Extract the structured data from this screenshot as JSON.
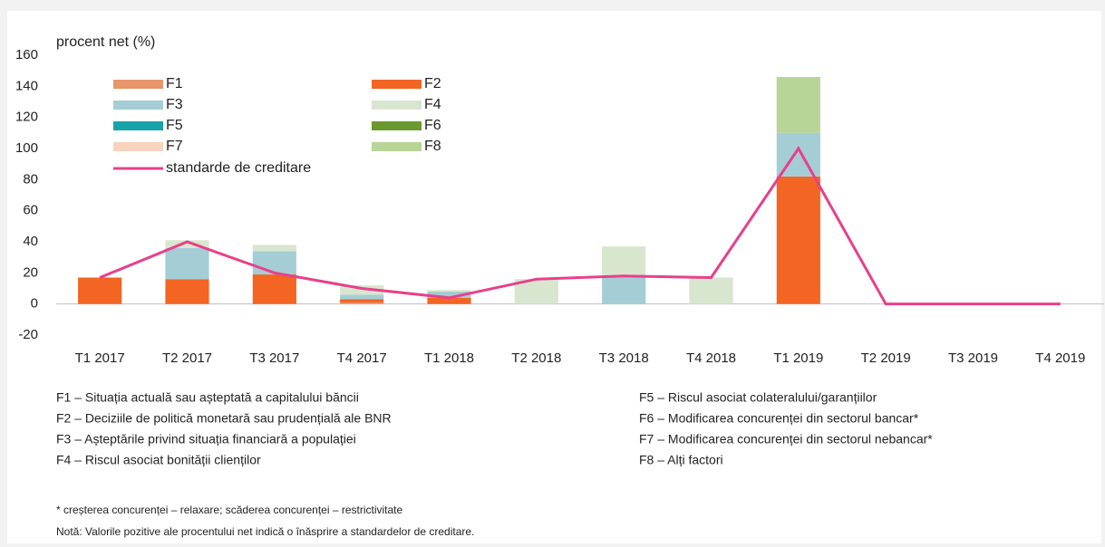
{
  "chart_data": {
    "type": "stacked-bar-line",
    "y_label": "procent net (%)",
    "categories": [
      "T1 2017",
      "T2 2017",
      "T3 2017",
      "T4 2017",
      "T1 2018",
      "T2 2018",
      "T3 2018",
      "T4 2018",
      "T1 2019",
      "T2 2019",
      "T3 2019",
      "T4 2019"
    ],
    "series": [
      {
        "name": "F1",
        "color": "#e8956a",
        "values": [
          0,
          0,
          0,
          1,
          0,
          0,
          0,
          0,
          0,
          0,
          0,
          0
        ]
      },
      {
        "name": "F2",
        "color": "#f26522",
        "values": [
          17,
          16,
          19,
          2,
          4,
          0,
          0,
          0,
          82,
          0,
          0,
          0
        ]
      },
      {
        "name": "F3",
        "color": "#a5cdd5",
        "values": [
          0,
          20,
          15,
          3,
          4,
          0,
          17,
          0,
          28,
          0,
          0,
          0
        ]
      },
      {
        "name": "F4",
        "color": "#d9e6cf",
        "values": [
          0,
          5,
          4,
          6,
          1,
          16,
          20,
          17,
          0,
          0,
          0,
          0
        ]
      },
      {
        "name": "F5",
        "color": "#1aa2a9",
        "values": [
          0,
          0,
          0,
          0,
          0,
          0,
          0,
          0,
          0,
          0,
          0,
          0
        ]
      },
      {
        "name": "F6",
        "color": "#6a9a2e",
        "values": [
          0,
          0,
          0,
          0,
          0,
          0,
          0,
          0,
          0,
          0,
          0,
          0
        ]
      },
      {
        "name": "F7",
        "color": "#f8d3bf",
        "values": [
          0,
          0,
          0,
          0,
          0,
          0,
          0,
          0,
          0,
          0,
          0,
          0
        ]
      },
      {
        "name": "F8",
        "color": "#b9d497",
        "values": [
          0,
          0,
          0,
          0,
          0,
          0,
          0,
          0,
          36,
          0,
          0,
          0
        ]
      }
    ],
    "line": {
      "name": "standarde de creditare",
      "color": "#e8408a",
      "values": [
        17,
        40,
        20,
        10,
        4,
        16,
        18,
        17,
        100,
        0,
        0,
        0
      ]
    },
    "ylim": [
      -20,
      160
    ],
    "yticks": [
      -20,
      0,
      20,
      40,
      60,
      80,
      100,
      120,
      140,
      160
    ],
    "factor_notes": [
      "F1 – Situația actuală sau așteptată a capitalului băncii",
      "F2 – Deciziile de politică monetară sau prudențială ale BNR",
      "F3 – Așteptările privind situația financiară a populației",
      "F4 – Riscul asociat bonității clienților",
      "F5 – Riscul asociat colateralului/garanțiilor",
      "F6 – Modificarea concurenței din sectorul bancar*",
      "F7 – Modificarea concurenței din sectorul nebancar*",
      "F8 – Alți factori"
    ],
    "notes": [
      "* creșterea concurenței – relaxare; scăderea concurenței – restrictivitate",
      "Notă: Valorile pozitive ale procentului net indică o înăsprire a standardelor de creditare."
    ]
  }
}
